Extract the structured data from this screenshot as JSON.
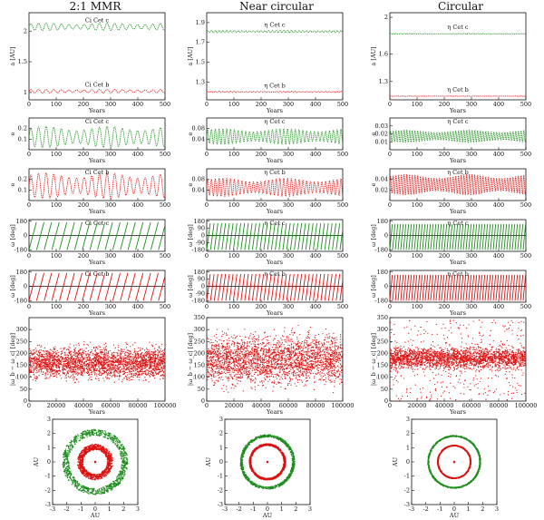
{
  "figure": {
    "column_titles": [
      "2:1 MMR",
      "Near circular",
      "Circular"
    ]
  },
  "colors": {
    "planet_c": "#1e8c1e",
    "planet_b": "#dd1111",
    "axis": "#111111"
  },
  "chart_data": [
    {
      "panel": "semi-major-axis",
      "column": "2:1 MMR",
      "type": "line",
      "ylabel": "a [AU]",
      "xlabel": "Years",
      "xlim": [
        0,
        500
      ],
      "ylim": [
        0.88,
        2.3
      ],
      "xticks": [
        "0",
        "100",
        "200",
        "300",
        "400",
        "500"
      ],
      "yticks": [
        "1",
        "1.5",
        "2"
      ],
      "series": [
        {
          "name": "Ci Cet c",
          "mean": 2.07,
          "amplitude": 0.06,
          "period": 28
        },
        {
          "name": "Ci Cet b",
          "mean": 1.02,
          "amplitude": 0.03,
          "period": 28
        }
      ]
    },
    {
      "panel": "semi-major-axis",
      "column": "Near circular",
      "type": "line",
      "ylabel": "a [AU]",
      "xlabel": "Years",
      "xlim": [
        0,
        500
      ],
      "ylim": [
        1.12,
        2.0
      ],
      "xticks": [
        "0",
        "100",
        "200",
        "300",
        "400",
        "500"
      ],
      "yticks": [
        "1.3",
        "1.5",
        "1.7",
        "1.9"
      ],
      "series": [
        {
          "name": "η Cet c",
          "mean": 1.81,
          "amplitude": 0.012,
          "period": 14
        },
        {
          "name": "η Cet b",
          "mean": 1.2,
          "amplitude": 0.006,
          "period": 14
        }
      ]
    },
    {
      "panel": "semi-major-axis",
      "column": "Circular",
      "type": "line",
      "ylabel": "a [AU]",
      "xlabel": "Years",
      "xlim": [
        0,
        500
      ],
      "ylim": [
        1.1,
        2.05
      ],
      "xticks": [
        "0",
        "100",
        "200",
        "300",
        "400",
        "500"
      ],
      "yticks": [
        "1.3",
        "1.6",
        "2"
      ],
      "series": [
        {
          "name": "η Cet c",
          "mean": 1.82,
          "amplitude": 0.004,
          "period": 10
        },
        {
          "name": "η Cet b",
          "mean": 1.14,
          "amplitude": 0.002,
          "period": 10
        }
      ]
    },
    {
      "panel": "eccentricity-c",
      "column": "2:1 MMR",
      "type": "line",
      "ylabel": "e",
      "xlabel": "Years",
      "xlim": [
        0,
        500
      ],
      "ylim": [
        0,
        0.3
      ],
      "xticks": [
        "0",
        "100",
        "200",
        "300",
        "400",
        "500"
      ],
      "yticks": [
        "0.1",
        "0.2"
      ],
      "series": [
        {
          "name": "Ci Cet c",
          "mean": 0.12,
          "amplitude": 0.1,
          "period": 28
        }
      ]
    },
    {
      "panel": "eccentricity-c",
      "column": "Near circular",
      "type": "line",
      "ylabel": "e",
      "xlabel": "Years",
      "xlim": [
        0,
        500
      ],
      "ylim": [
        0,
        0.12
      ],
      "xticks": [
        "0",
        "100",
        "200",
        "300",
        "400",
        "500"
      ],
      "yticks": [
        "0.04",
        "0.08"
      ],
      "series": [
        {
          "name": "η Cet c",
          "mean": 0.05,
          "amplitude": 0.03,
          "period": 14
        }
      ]
    },
    {
      "panel": "eccentricity-c",
      "column": "Circular",
      "type": "line",
      "ylabel": "e",
      "xlabel": "Years",
      "xlim": [
        0,
        500
      ],
      "ylim": [
        0,
        0.04
      ],
      "xticks": [
        "0",
        "100",
        "200",
        "300",
        "400",
        "500"
      ],
      "yticks": [
        "0.01",
        "0.02",
        "0.03"
      ],
      "series": [
        {
          "name": "η Cet c",
          "mean": 0.017,
          "amplitude": 0.008,
          "period": 10
        }
      ]
    },
    {
      "panel": "eccentricity-b",
      "column": "2:1 MMR",
      "type": "line",
      "ylabel": "e",
      "xlabel": "Years",
      "xlim": [
        0,
        500
      ],
      "ylim": [
        0,
        0.3
      ],
      "xticks": [
        "0",
        "100",
        "200",
        "300",
        "400",
        "500"
      ],
      "yticks": [
        "0.1",
        "0.2"
      ],
      "series": [
        {
          "name": "Ci Cet b",
          "mean": 0.14,
          "amplitude": 0.12,
          "period": 28
        }
      ]
    },
    {
      "panel": "eccentricity-b",
      "column": "Near circular",
      "type": "line",
      "ylabel": "e",
      "xlabel": "Years",
      "xlim": [
        0,
        500
      ],
      "ylim": [
        0,
        0.12
      ],
      "xticks": [
        "0",
        "100",
        "200",
        "300",
        "400",
        "500"
      ],
      "yticks": [
        "0.04",
        "0.08"
      ],
      "series": [
        {
          "name": "η Cet b",
          "mean": 0.05,
          "amplitude": 0.035,
          "period": 14
        }
      ]
    },
    {
      "panel": "eccentricity-b",
      "column": "Circular",
      "type": "line",
      "ylabel": "e",
      "xlabel": "Years",
      "xlim": [
        0,
        500
      ],
      "ylim": [
        0,
        0.06
      ],
      "xticks": [
        "0",
        "100",
        "200",
        "300",
        "400",
        "500"
      ],
      "yticks": [
        "0.02",
        "0.04"
      ],
      "series": [
        {
          "name": "η Cet b",
          "mean": 0.03,
          "amplitude": 0.02,
          "period": 10
        }
      ]
    },
    {
      "panel": "periastron-c",
      "column": "2:1 MMR",
      "type": "scatter",
      "ylabel": "ω [deg]",
      "xlabel": "Years",
      "xlim": [
        0,
        500
      ],
      "ylim": [
        -200,
        200
      ],
      "xticks": [
        "0",
        "100",
        "200",
        "300",
        "400",
        "500"
      ],
      "yticks": [
        "-180",
        "0",
        "180"
      ],
      "series": [
        {
          "name": "Ci Cet c",
          "period": 28
        }
      ]
    },
    {
      "panel": "periastron-c",
      "column": "Near circular",
      "type": "scatter",
      "ylabel": "ω [deg]",
      "xlabel": "Years",
      "xlim": [
        0,
        500
      ],
      "ylim": [
        -200,
        200
      ],
      "xticks": [
        "0",
        "100",
        "200",
        "300",
        "400",
        "500"
      ],
      "yticks": [
        "-180",
        "-90",
        "0",
        "90",
        "180"
      ],
      "series": [
        {
          "name": "η Cet c",
          "period": 14
        }
      ]
    },
    {
      "panel": "periastron-c",
      "column": "Circular",
      "type": "scatter",
      "ylabel": "ω [deg]",
      "xlabel": "Years",
      "xlim": [
        0,
        500
      ],
      "ylim": [
        -200,
        200
      ],
      "xticks": [
        "0",
        "100",
        "200",
        "300",
        "400",
        "500"
      ],
      "yticks": [
        "-180",
        "0",
        "180"
      ],
      "series": [
        {
          "name": "η Cet c",
          "period": 10
        }
      ]
    },
    {
      "panel": "periastron-b",
      "column": "2:1 MMR",
      "type": "scatter",
      "ylabel": "ω [deg]",
      "xlabel": "Years",
      "xlim": [
        0,
        500
      ],
      "ylim": [
        -200,
        200
      ],
      "xticks": [
        "0",
        "100",
        "200",
        "300",
        "400",
        "500"
      ],
      "yticks": [
        "-180",
        "0",
        "180"
      ],
      "series": [
        {
          "name": "Ci Cet b",
          "period": 28
        }
      ]
    },
    {
      "panel": "periastron-b",
      "column": "Near circular",
      "type": "scatter",
      "ylabel": "ω [deg]",
      "xlabel": "Years",
      "xlim": [
        0,
        500
      ],
      "ylim": [
        -200,
        200
      ],
      "xticks": [
        "0",
        "100",
        "200",
        "300",
        "400",
        "500"
      ],
      "yticks": [
        "-180",
        "-90",
        "0",
        "90",
        "180"
      ],
      "series": [
        {
          "name": "η Cet b",
          "period": 14
        }
      ]
    },
    {
      "panel": "periastron-b",
      "column": "Circular",
      "type": "scatter",
      "ylabel": "ω [deg]",
      "xlabel": "Years",
      "xlim": [
        0,
        500
      ],
      "ylim": [
        -200,
        200
      ],
      "xticks": [
        "0",
        "100",
        "200",
        "300",
        "400",
        "500"
      ],
      "yticks": [
        "-180",
        "0",
        "180"
      ],
      "series": [
        {
          "name": "η Cet b",
          "period": 10
        }
      ]
    },
    {
      "panel": "delta-omega",
      "column": "2:1 MMR",
      "type": "scatter",
      "ylabel": "|ω_b − ω_c| [deg]",
      "xlabel": "Years",
      "xlim": [
        0,
        100000
      ],
      "ylim": [
        0,
        350
      ],
      "xticks": [
        "0",
        "20000",
        "40000",
        "60000",
        "80000",
        "100000"
      ],
      "yticks": [
        "0",
        "50",
        "100",
        "150",
        "200",
        "250",
        "300"
      ],
      "series": [
        {
          "name": "Δω",
          "mean": 160,
          "spread": 45
        }
      ]
    },
    {
      "panel": "delta-omega",
      "column": "Near circular",
      "type": "scatter",
      "ylabel": "|ω_b − ω_c| [deg]",
      "xlabel": "Years",
      "xlim": [
        0,
        100000
      ],
      "ylim": [
        0,
        350
      ],
      "xticks": [
        "0",
        "20000",
        "40000",
        "60000",
        "80000",
        "100000"
      ],
      "yticks": [
        "0",
        "50",
        "100",
        "150",
        "200",
        "250",
        "300",
        "350"
      ],
      "series": [
        {
          "name": "Δω",
          "mean": 175,
          "spread": 70
        }
      ]
    },
    {
      "panel": "delta-omega",
      "column": "Circular",
      "type": "scatter",
      "ylabel": "|ω_b − ω_c| [deg]",
      "xlabel": "Years",
      "xlim": [
        0,
        100000
      ],
      "ylim": [
        0,
        350
      ],
      "xticks": [
        "0",
        "20000",
        "40000",
        "60000",
        "80000",
        "100000"
      ],
      "yticks": [
        "0",
        "50",
        "100",
        "150",
        "200",
        "250",
        "300",
        "350"
      ],
      "series": [
        {
          "name": "Δω",
          "mean": 180,
          "spread": 30
        }
      ]
    },
    {
      "panel": "orbits",
      "column": "2:1 MMR",
      "type": "scatter",
      "xlabel": "AU",
      "ylabel": "AU",
      "xlim": [
        -3,
        3
      ],
      "ylim": [
        -3,
        3
      ],
      "xticks": [
        "-3",
        "-2",
        "-1",
        "0",
        "1",
        "2",
        "3"
      ],
      "yticks": [
        "-3",
        "-2",
        "-1",
        "0",
        "1",
        "2",
        "3"
      ],
      "series": [
        {
          "name": "Ci Cet c",
          "r_min": 1.85,
          "r_max": 2.3
        },
        {
          "name": "Ci Cet b",
          "r_min": 0.85,
          "r_max": 1.25
        }
      ]
    },
    {
      "panel": "orbits",
      "column": "Near circular",
      "type": "scatter",
      "xlabel": "AU",
      "ylabel": "AU",
      "xlim": [
        -3,
        3
      ],
      "ylim": [
        -3,
        3
      ],
      "xticks": [
        "-3",
        "-2",
        "-1",
        "0",
        "1",
        "2",
        "3"
      ],
      "yticks": [
        "-3",
        "-2",
        "-1",
        "0",
        "1",
        "2",
        "3"
      ],
      "series": [
        {
          "name": "η Cet c",
          "r_min": 1.75,
          "r_max": 1.92
        },
        {
          "name": "η Cet b",
          "r_min": 1.15,
          "r_max": 1.28
        }
      ]
    },
    {
      "panel": "orbits",
      "column": "Circular",
      "type": "scatter",
      "xlabel": "AU",
      "ylabel": "AU",
      "xlim": [
        -3,
        3
      ],
      "ylim": [
        -3,
        3
      ],
      "xticks": [
        "-3",
        "-2",
        "-1",
        "0",
        "1",
        "2",
        "3"
      ],
      "yticks": [
        "-3",
        "-2",
        "-1",
        "0",
        "1",
        "2",
        "3"
      ],
      "series": [
        {
          "name": "η Cet c",
          "r_min": 1.78,
          "r_max": 1.86
        },
        {
          "name": "η Cet b",
          "r_min": 1.12,
          "r_max": 1.18
        }
      ]
    }
  ]
}
